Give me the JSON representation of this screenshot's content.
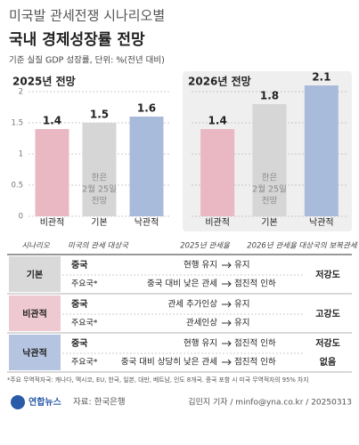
{
  "header": {
    "kicker": "미국발 관세전쟁 시나리오별",
    "title": "국내 경제성장률 전망",
    "subtitle": "기준 실질 GDP 성장률, 단위: %(전년 대비)"
  },
  "chart_data": [
    {
      "type": "bar",
      "title": "2025년 전망",
      "categories": [
        "비관적",
        "기본",
        "낙관적"
      ],
      "values": [
        1.4,
        1.5,
        1.6
      ],
      "colors": [
        "#e9b8c3",
        "#d6d6d6",
        "#a9bbdb"
      ],
      "ylim": [
        0,
        2
      ],
      "yticks": [
        0,
        0.5,
        1,
        1.5,
        2
      ],
      "ytick_labels": true,
      "grid": true,
      "background": "#ffffff",
      "annotation": [
        "한은",
        "2월 25일",
        "전망"
      ]
    },
    {
      "type": "bar",
      "title": "2026년 전망",
      "categories": [
        "비관적",
        "기본",
        "낙관적"
      ],
      "values": [
        1.4,
        1.8,
        2.1
      ],
      "colors": [
        "#e9b8c3",
        "#d6d6d6",
        "#a9bbdb"
      ],
      "ylim": [
        0,
        2
      ],
      "yticks": [
        0,
        0.5,
        1,
        1.5,
        2
      ],
      "ytick_labels": false,
      "grid": true,
      "background": "#efefef",
      "annotation": [
        "한은",
        "2월 25일",
        "전망"
      ]
    }
  ],
  "table": {
    "columns": [
      "시나리오",
      "미국의 관세 대상국",
      "2025년 관세율",
      "2026년 관세율",
      "대상국의 보복관세"
    ],
    "groups": [
      {
        "name": "기본",
        "color": "#d9d9d9",
        "retaliation": "저강도",
        "rows": [
          {
            "target": "중국",
            "y2025": "현행 유지",
            "y2026": "유지"
          },
          {
            "target": "주요국*",
            "y2025": "중국 대비 낮은 관세",
            "y2026": "점진적 인하"
          }
        ]
      },
      {
        "name": "비관적",
        "color": "#efc9d1",
        "retaliation": "고강도",
        "rows": [
          {
            "target": "중국",
            "y2025": "관세 추가인상",
            "y2026": "유지"
          },
          {
            "target": "주요국*",
            "y2025": "관세인상",
            "y2026": "유지"
          }
        ]
      },
      {
        "name": "낙관적",
        "color": "#b5c4e0",
        "rows": [
          {
            "target": "중국",
            "y2025": "현행 유지",
            "y2026": "점진적 인하",
            "retaliation": "저강도"
          },
          {
            "target": "주요국*",
            "y2025": "중국 대비 상당히 낮은 관세",
            "y2026": "점진적 인하",
            "retaliation": "없음"
          }
        ]
      }
    ]
  },
  "footnote": "*주요 무역적자국: 캐나다, 멕시코, EU, 한국, 일본, 대만, 베트남, 인도 8개국. 중국 포함 시 미국 무역적자의 95% 차지",
  "footer": {
    "logo": "연합뉴스",
    "source": "자료: 한국은행",
    "credit": "김민지 기자 / minfo@yna.co.kr / 20250313"
  }
}
